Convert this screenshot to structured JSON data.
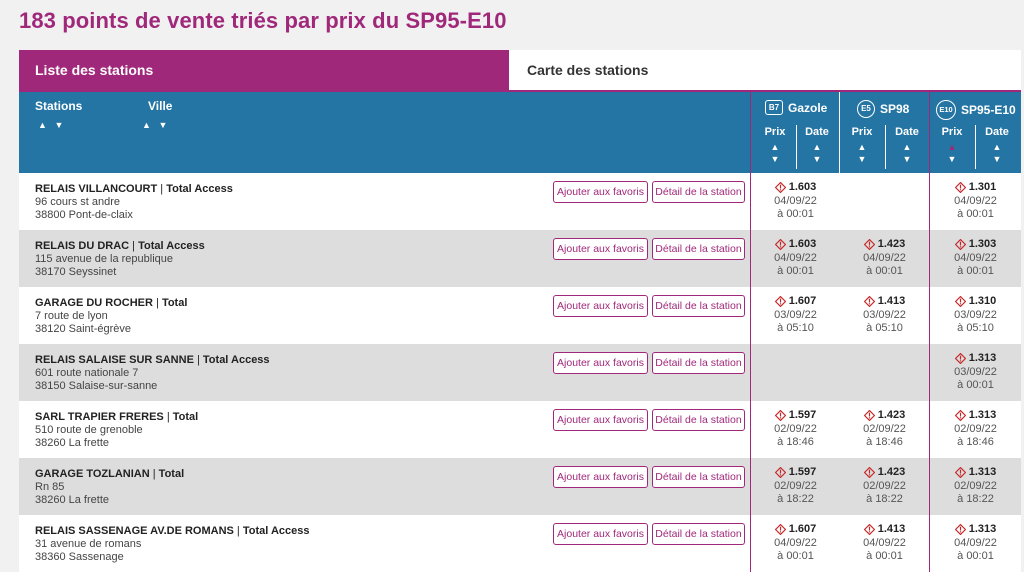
{
  "title": "183 points de vente triés par prix du SP95-E10",
  "tabs": [
    {
      "label": "Liste des stations",
      "active": true
    },
    {
      "label": "Carte des stations",
      "active": false
    }
  ],
  "header": {
    "stations_label": "Stations",
    "ville_label": "Ville",
    "fuels": [
      {
        "badge": "B7",
        "badge_shape": "square",
        "name": "Gazole"
      },
      {
        "badge": "E5",
        "badge_shape": "circle",
        "name": "SP98"
      },
      {
        "badge": "E10",
        "badge_shape": "circle",
        "name": "SP95-E10"
      }
    ],
    "prix_label": "Prix",
    "date_label": "Date",
    "active_sort": {
      "fuel": "SP95-E10",
      "column": "Prix",
      "direction": "asc",
      "color": "#a0287a"
    }
  },
  "buttons": {
    "favoris": "Ajouter aux favoris",
    "detail": "Détail de la station"
  },
  "colors": {
    "accent": "#a0287a",
    "header_bg": "#2475a4",
    "warning": "#c62828"
  },
  "stations": [
    {
      "name": "RELAIS VILLANCOURT",
      "brand": "Total Access",
      "address": "96 cours st andre",
      "city": "38800 Pont-de-claix",
      "prices": [
        {
          "price": "1.603",
          "date": "04/09/22",
          "time": "à 00:01"
        },
        null,
        {
          "price": "1.301",
          "date": "04/09/22",
          "time": "à 00:01"
        }
      ]
    },
    {
      "name": "RELAIS DU DRAC",
      "brand": "Total Access",
      "address": "115 avenue de la republique",
      "city": "38170 Seyssinet",
      "prices": [
        {
          "price": "1.603",
          "date": "04/09/22",
          "time": "à 00:01"
        },
        {
          "price": "1.423",
          "date": "04/09/22",
          "time": "à 00:01"
        },
        {
          "price": "1.303",
          "date": "04/09/22",
          "time": "à 00:01"
        }
      ]
    },
    {
      "name": "GARAGE DU ROCHER",
      "brand": "Total",
      "address": "7 route de lyon",
      "city": "38120 Saint-égrève",
      "prices": [
        {
          "price": "1.607",
          "date": "03/09/22",
          "time": "à 05:10"
        },
        {
          "price": "1.413",
          "date": "03/09/22",
          "time": "à 05:10"
        },
        {
          "price": "1.310",
          "date": "03/09/22",
          "time": "à 05:10"
        }
      ]
    },
    {
      "name": "RELAIS SALAISE SUR SANNE",
      "brand": "Total Access",
      "address": "601 route nationale 7",
      "city": "38150 Salaise-sur-sanne",
      "prices": [
        null,
        null,
        {
          "price": "1.313",
          "date": "03/09/22",
          "time": "à 00:01"
        }
      ]
    },
    {
      "name": "SARL TRAPIER FRERES",
      "brand": "Total",
      "address": "510 route de grenoble",
      "city": "38260 La frette",
      "prices": [
        {
          "price": "1.597",
          "date": "02/09/22",
          "time": "à 18:46"
        },
        {
          "price": "1.423",
          "date": "02/09/22",
          "time": "à 18:46"
        },
        {
          "price": "1.313",
          "date": "02/09/22",
          "time": "à 18:46"
        }
      ]
    },
    {
      "name": "GARAGE TOZLANIAN",
      "brand": "Total",
      "address": "Rn 85",
      "city": "38260 La frette",
      "prices": [
        {
          "price": "1.597",
          "date": "02/09/22",
          "time": "à 18:22"
        },
        {
          "price": "1.423",
          "date": "02/09/22",
          "time": "à 18:22"
        },
        {
          "price": "1.313",
          "date": "02/09/22",
          "time": "à 18:22"
        }
      ]
    },
    {
      "name": "RELAIS SASSENAGE AV.DE ROMANS",
      "brand": "Total Access",
      "address": "31 avenue de romans",
      "city": "38360 Sassenage",
      "prices": [
        {
          "price": "1.607",
          "date": "04/09/22",
          "time": "à 00:01"
        },
        {
          "price": "1.413",
          "date": "04/09/22",
          "time": "à 00:01"
        },
        {
          "price": "1.313",
          "date": "04/09/22",
          "time": "à 00:01"
        }
      ]
    }
  ]
}
